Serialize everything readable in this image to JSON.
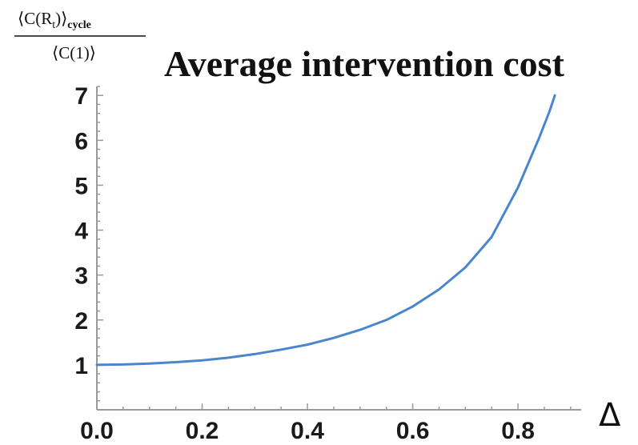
{
  "chart_data": {
    "type": "line",
    "title": "Average intervention cost",
    "ylabel": {
      "numerator_prefix": "⟨C(R",
      "numerator_sub_t": "t",
      "numerator_mid": ")⟩",
      "numerator_sub_cycle": "cycle",
      "denominator": "⟨C(1)⟩"
    },
    "xlabel": "Δ",
    "xlim": [
      0,
      0.92
    ],
    "ylim": [
      0,
      7.2
    ],
    "xticks": [
      0.0,
      0.2,
      0.4,
      0.6,
      0.8
    ],
    "xtick_labels": [
      "0.0",
      "0.2",
      "0.4",
      "0.6",
      "0.8"
    ],
    "yticks": [
      1,
      2,
      3,
      4,
      5,
      6,
      7
    ],
    "ytick_labels": [
      "1",
      "2",
      "3",
      "4",
      "5",
      "6",
      "7"
    ],
    "grid": false,
    "series": [
      {
        "color": "#4a86cf",
        "x": [
          0.0,
          0.05,
          0.1,
          0.15,
          0.2,
          0.25,
          0.3,
          0.35,
          0.4,
          0.45,
          0.5,
          0.55,
          0.6,
          0.65,
          0.7,
          0.75,
          0.8,
          0.82,
          0.84,
          0.86,
          0.87
        ],
        "y": [
          1.0,
          1.01,
          1.03,
          1.06,
          1.1,
          1.16,
          1.24,
          1.34,
          1.45,
          1.6,
          1.78,
          2.0,
          2.3,
          2.68,
          3.17,
          3.85,
          4.95,
          5.5,
          6.05,
          6.65,
          7.0
        ]
      }
    ]
  }
}
